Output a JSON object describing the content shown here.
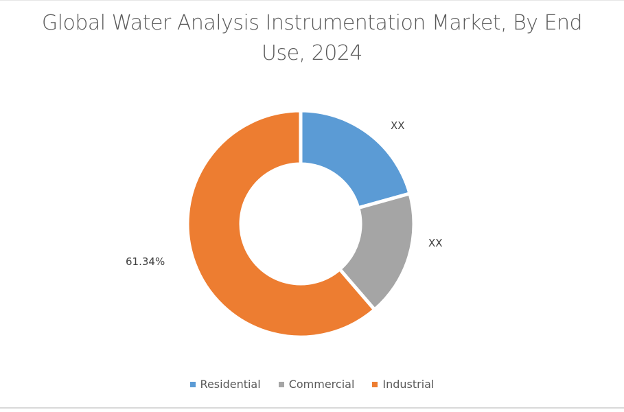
{
  "chart_data": {
    "type": "pie",
    "subtype": "donut",
    "title": "Global Water Analysis Instrumentation Market, By End Use, 2024",
    "categories": [
      "Residential",
      "Commercial",
      "Industrial"
    ],
    "values": [
      20.7,
      18.0,
      61.34
    ],
    "data_labels": [
      "XX",
      "XX",
      "61.34%"
    ],
    "colors": [
      "#5b9bd5",
      "#a5a5a5",
      "#ed7d31"
    ],
    "legend_position": "bottom",
    "unit": "%"
  },
  "title": {
    "line1": "Global Water Analysis Instrumentation Market, By End",
    "line2": "Use, 2024"
  },
  "labels": {
    "residential": "XX",
    "commercial": "XX",
    "industrial": "61.34%"
  },
  "legend": {
    "items": [
      {
        "label": "Residential",
        "color": "#5b9bd5"
      },
      {
        "label": "Commercial",
        "color": "#a5a5a5"
      },
      {
        "label": "Industrial",
        "color": "#ed7d31"
      }
    ]
  }
}
